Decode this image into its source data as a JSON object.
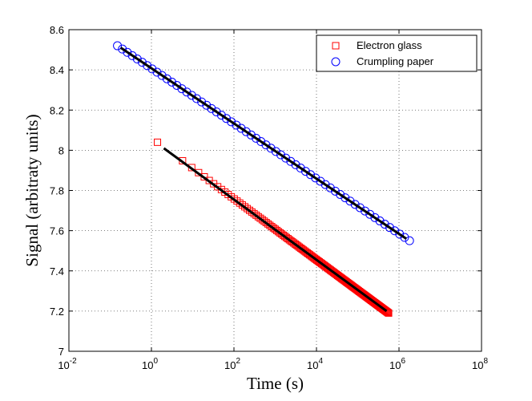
{
  "chart_data": {
    "type": "scatter",
    "xlabel": "Time (s)",
    "ylabel": "Signal (arbitraty units)",
    "xscale": "log",
    "xlim": [
      0.01,
      100000000
    ],
    "ylim": [
      7,
      8.6
    ],
    "grid": true,
    "legend_position": "top-right",
    "x_ticks": [
      {
        "value": 0.01,
        "base": "10",
        "exp": "-2"
      },
      {
        "value": 1,
        "base": "10",
        "exp": "0"
      },
      {
        "value": 100,
        "base": "10",
        "exp": "2"
      },
      {
        "value": 10000,
        "base": "10",
        "exp": "4"
      },
      {
        "value": 1000000,
        "base": "10",
        "exp": "6"
      },
      {
        "value": 100000000,
        "base": "10",
        "exp": "8"
      }
    ],
    "y_ticks": [
      {
        "value": 7,
        "label": "7"
      },
      {
        "value": 7.2,
        "label": "7.2"
      },
      {
        "value": 7.4,
        "label": "7.4"
      },
      {
        "value": 7.6,
        "label": "7.6"
      },
      {
        "value": 7.8,
        "label": "7.8"
      },
      {
        "value": 8,
        "label": "8"
      },
      {
        "value": 8.2,
        "label": "8.2"
      },
      {
        "value": 8.4,
        "label": "8.4"
      },
      {
        "value": 8.6,
        "label": "8.6"
      }
    ],
    "series": [
      {
        "name": "Electron glass",
        "marker": "square",
        "color": "#ff0000",
        "x_range": [
          1.4,
          560000
        ],
        "y_range": [
          8.04,
          7.19
        ],
        "points": 140
      },
      {
        "name": "Crumpling paper",
        "marker": "circle",
        "color": "#0000ff",
        "x_range": [
          0.15,
          1800000
        ],
        "y_range": [
          8.52,
          7.55
        ],
        "points": 60
      }
    ],
    "fit_lines": [
      {
        "series": "Electron glass",
        "color": "#000000",
        "x": [
          2,
          500000
        ],
        "y": [
          8.01,
          7.2
        ]
      },
      {
        "series": "Crumpling paper",
        "color": "#000000",
        "x": [
          0.18,
          1500000
        ],
        "y": [
          8.51,
          7.56
        ]
      }
    ]
  }
}
